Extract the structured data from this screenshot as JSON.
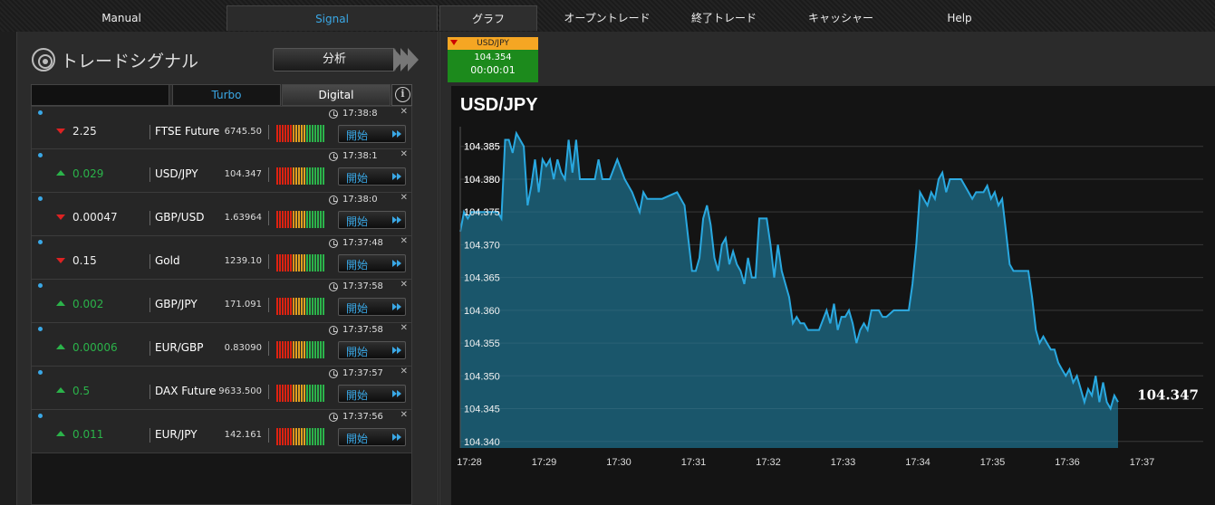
{
  "nav": {
    "manual": "Manual",
    "signal": "Signal",
    "graph": "グラフ",
    "open_trades": "オープントレード",
    "closed_trades": "終了トレード",
    "cashier": "キャッシャー",
    "help": "Help"
  },
  "signal_panel": {
    "title": "トレードシグナル",
    "analyze_label": "分析",
    "filter_value": "",
    "turbo_label": "Turbo",
    "digital_label": "Digital",
    "start_label": "開始",
    "colors": {
      "up": "#2bb34a",
      "down": "#dd2222",
      "accent": "#3aa8e6"
    },
    "rows": [
      {
        "direction": "down",
        "change": "2.25",
        "symbol": "FTSE Future",
        "price": "6745.50",
        "time": "17:38:8"
      },
      {
        "direction": "up",
        "change": "0.029",
        "symbol": "USD/JPY",
        "price": "104.347",
        "time": "17:38:1"
      },
      {
        "direction": "down",
        "change": "0.00047",
        "symbol": "GBP/USD",
        "price": "1.63964",
        "time": "17:38:0"
      },
      {
        "direction": "down",
        "change": "0.15",
        "symbol": "Gold",
        "price": "1239.10",
        "time": "17:37:48"
      },
      {
        "direction": "up",
        "change": "0.002",
        "symbol": "GBP/JPY",
        "price": "171.091",
        "time": "17:37:58"
      },
      {
        "direction": "up",
        "change": "0.00006",
        "symbol": "EUR/GBP",
        "price": "0.83090",
        "time": "17:37:58"
      },
      {
        "direction": "up",
        "change": "0.5",
        "symbol": "DAX Future",
        "price": "9633.500",
        "time": "17:37:57"
      },
      {
        "direction": "up",
        "change": "0.011",
        "symbol": "EUR/JPY",
        "price": "142.161",
        "time": "17:37:56"
      }
    ]
  },
  "quote_box": {
    "symbol": "USD/JPY",
    "price": "104.354",
    "countdown": "00:00:01"
  },
  "chart_data": {
    "type": "area",
    "title": "USD/JPY",
    "current_value_label": "104.347",
    "xlabel": "",
    "ylabel": "",
    "ylim": [
      104.339,
      104.388
    ],
    "xlim": [
      17.4667,
      17.6333
    ],
    "yticks": [
      "104.385",
      "104.380",
      "104.375",
      "104.370",
      "104.365",
      "104.360",
      "104.355",
      "104.350",
      "104.345",
      "104.340"
    ],
    "xticks": [
      "17:28",
      "17:29",
      "17:30",
      "17:31",
      "17:32",
      "17:33",
      "17:34",
      "17:35",
      "17:36",
      "17:37"
    ],
    "line_color": "#29a8e0",
    "fill_color": "#1a5a70",
    "points": [
      [
        0,
        104.372
      ],
      [
        0.05,
        104.375
      ],
      [
        0.1,
        104.374
      ],
      [
        0.15,
        104.375
      ],
      [
        0.3,
        104.375
      ],
      [
        0.5,
        104.375
      ],
      [
        0.55,
        104.374
      ],
      [
        0.6,
        104.386
      ],
      [
        0.65,
        104.386
      ],
      [
        0.7,
        104.384
      ],
      [
        0.75,
        104.387
      ],
      [
        0.8,
        104.386
      ],
      [
        0.85,
        104.385
      ],
      [
        0.9,
        104.376
      ],
      [
        0.95,
        104.379
      ],
      [
        1.0,
        104.383
      ],
      [
        1.05,
        104.378
      ],
      [
        1.1,
        104.383
      ],
      [
        1.15,
        104.382
      ],
      [
        1.2,
        104.383
      ],
      [
        1.25,
        104.38
      ],
      [
        1.3,
        104.383
      ],
      [
        1.35,
        104.381
      ],
      [
        1.4,
        104.38
      ],
      [
        1.45,
        104.386
      ],
      [
        1.5,
        104.381
      ],
      [
        1.55,
        104.386
      ],
      [
        1.6,
        104.38
      ],
      [
        1.7,
        104.38
      ],
      [
        1.8,
        104.38
      ],
      [
        1.85,
        104.383
      ],
      [
        1.9,
        104.38
      ],
      [
        2.0,
        104.38
      ],
      [
        2.1,
        104.383
      ],
      [
        2.2,
        104.38
      ],
      [
        2.3,
        104.378
      ],
      [
        2.4,
        104.375
      ],
      [
        2.45,
        104.378
      ],
      [
        2.5,
        104.377
      ],
      [
        2.6,
        104.377
      ],
      [
        2.7,
        104.377
      ],
      [
        2.9,
        104.378
      ],
      [
        3.0,
        104.376
      ],
      [
        3.05,
        104.371
      ],
      [
        3.1,
        104.366
      ],
      [
        3.15,
        104.366
      ],
      [
        3.2,
        104.368
      ],
      [
        3.25,
        104.374
      ],
      [
        3.3,
        104.376
      ],
      [
        3.35,
        104.373
      ],
      [
        3.4,
        104.368
      ],
      [
        3.45,
        104.366
      ],
      [
        3.5,
        104.37
      ],
      [
        3.55,
        104.371
      ],
      [
        3.6,
        104.367
      ],
      [
        3.65,
        104.369
      ],
      [
        3.7,
        104.367
      ],
      [
        3.75,
        104.366
      ],
      [
        3.8,
        104.364
      ],
      [
        3.85,
        104.368
      ],
      [
        3.9,
        104.365
      ],
      [
        3.95,
        104.365
      ],
      [
        4.0,
        104.374
      ],
      [
        4.1,
        104.374
      ],
      [
        4.15,
        104.37
      ],
      [
        4.2,
        104.365
      ],
      [
        4.25,
        104.37
      ],
      [
        4.3,
        104.366
      ],
      [
        4.4,
        104.362
      ],
      [
        4.45,
        104.358
      ],
      [
        4.5,
        104.359
      ],
      [
        4.55,
        104.358
      ],
      [
        4.6,
        104.358
      ],
      [
        4.65,
        104.357
      ],
      [
        4.8,
        104.357
      ],
      [
        4.9,
        104.36
      ],
      [
        4.95,
        104.358
      ],
      [
        5.0,
        104.361
      ],
      [
        5.05,
        104.357
      ],
      [
        5.1,
        104.359
      ],
      [
        5.15,
        104.359
      ],
      [
        5.2,
        104.36
      ],
      [
        5.25,
        104.358
      ],
      [
        5.3,
        104.355
      ],
      [
        5.35,
        104.357
      ],
      [
        5.4,
        104.358
      ],
      [
        5.45,
        104.357
      ],
      [
        5.5,
        104.36
      ],
      [
        5.6,
        104.36
      ],
      [
        5.65,
        104.359
      ],
      [
        5.7,
        104.359
      ],
      [
        5.8,
        104.36
      ],
      [
        6.0,
        104.36
      ],
      [
        6.05,
        104.364
      ],
      [
        6.1,
        104.37
      ],
      [
        6.15,
        104.378
      ],
      [
        6.2,
        104.377
      ],
      [
        6.25,
        104.376
      ],
      [
        6.3,
        104.378
      ],
      [
        6.35,
        104.377
      ],
      [
        6.4,
        104.38
      ],
      [
        6.45,
        104.381
      ],
      [
        6.5,
        104.378
      ],
      [
        6.55,
        104.38
      ],
      [
        6.6,
        104.38
      ],
      [
        6.7,
        104.38
      ],
      [
        6.8,
        104.378
      ],
      [
        6.85,
        104.377
      ],
      [
        6.9,
        104.378
      ],
      [
        7.0,
        104.378
      ],
      [
        7.05,
        104.379
      ],
      [
        7.1,
        104.377
      ],
      [
        7.15,
        104.378
      ],
      [
        7.2,
        104.376
      ],
      [
        7.25,
        104.377
      ],
      [
        7.3,
        104.372
      ],
      [
        7.35,
        104.367
      ],
      [
        7.4,
        104.366
      ],
      [
        7.45,
        104.366
      ],
      [
        7.5,
        104.366
      ],
      [
        7.6,
        104.366
      ],
      [
        7.65,
        104.362
      ],
      [
        7.7,
        104.357
      ],
      [
        7.75,
        104.355
      ],
      [
        7.8,
        104.356
      ],
      [
        7.85,
        104.355
      ],
      [
        7.9,
        104.354
      ],
      [
        7.95,
        104.354
      ],
      [
        8.0,
        104.352
      ],
      [
        8.05,
        104.351
      ],
      [
        8.1,
        104.35
      ],
      [
        8.15,
        104.351
      ],
      [
        8.2,
        104.349
      ],
      [
        8.25,
        104.35
      ],
      [
        8.3,
        104.348
      ],
      [
        8.35,
        104.346
      ],
      [
        8.4,
        104.348
      ],
      [
        8.45,
        104.347
      ],
      [
        8.5,
        104.35
      ],
      [
        8.55,
        104.346
      ],
      [
        8.6,
        104.349
      ],
      [
        8.65,
        104.346
      ],
      [
        8.7,
        104.345
      ],
      [
        8.75,
        104.347
      ],
      [
        8.8,
        104.346
      ]
    ]
  }
}
